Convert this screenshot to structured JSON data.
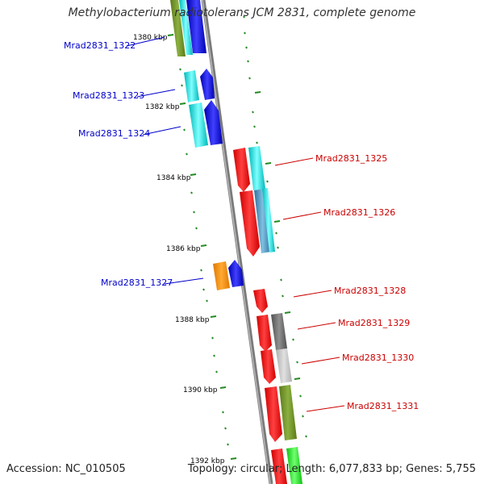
{
  "title": "Methylobacterium radiotolerans JCM 2831, complete genome",
  "accession": "Accession: NC_010505",
  "summary": "Topology: circular; Length: 6,077,833 bp; Genes: 5,755",
  "colors": {
    "backbone": "#888888",
    "tick": "#228b22",
    "left_label": "#0000cc",
    "right_label": "#cc0000"
  },
  "ticks": [
    "1380 kbp",
    "1382 kbp",
    "1384 kbp",
    "1386 kbp",
    "1388 kbp",
    "1390 kbp",
    "1392 kbp"
  ],
  "genes": [
    {
      "label": "Mrad2831_1322",
      "side": "left",
      "color": "#808000"
    },
    {
      "label": "Mrad2831_1323",
      "side": "left",
      "color": "#00cccc"
    },
    {
      "label": "Mrad2831_1324",
      "side": "left",
      "color": "#00cccc"
    },
    {
      "label": "Mrad2831_1325",
      "side": "right",
      "color": "#ff0000"
    },
    {
      "label": "Mrad2831_1326",
      "side": "right",
      "color": "#ff0000"
    },
    {
      "label": "Mrad2831_1327",
      "side": "left",
      "color": "#ff8c00"
    },
    {
      "label": "Mrad2831_1328",
      "side": "right",
      "color": "#ff0000"
    },
    {
      "label": "Mrad2831_1329",
      "side": "right",
      "color": "#ff0000"
    },
    {
      "label": "Mrad2831_1330",
      "side": "right",
      "color": "#ff0000"
    },
    {
      "label": "Mrad2831_1331",
      "side": "right",
      "color": "#ff0000"
    }
  ]
}
